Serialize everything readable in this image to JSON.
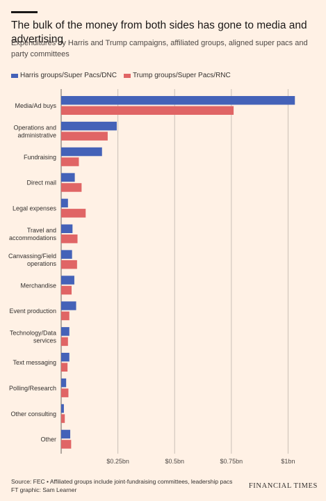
{
  "header": {
    "title": "The bulk of the money from both sides has gone to media and advertising",
    "subtitle": "Expenditures by Harris and Trump campaigns, affiliated groups, aligned super pacs and party committees"
  },
  "colors": {
    "harris": "#4462b8",
    "trump": "#e06565",
    "grid": "#c9bfb6",
    "background": "#fff1e5"
  },
  "chart_data": {
    "type": "bar",
    "orientation": "horizontal",
    "categories": [
      [
        "Media/Ad buys"
      ],
      [
        "Operations and",
        "administrative"
      ],
      [
        "Fundraising"
      ],
      [
        "Direct mail"
      ],
      [
        "Legal expenses"
      ],
      [
        "Travel and",
        "accommodations"
      ],
      [
        "Canvassing/Field",
        "operations"
      ],
      [
        "Merchandise"
      ],
      [
        "Event production"
      ],
      [
        "Technology/Data",
        "services"
      ],
      [
        "Text messaging"
      ],
      [
        "Polling/Research"
      ],
      [
        "Other consulting"
      ],
      [
        "Other"
      ]
    ],
    "series": [
      {
        "name": "Harris groups/Super Pacs/DNC",
        "color": "#4462b8",
        "values": [
          1.03,
          0.245,
          0.18,
          0.06,
          0.03,
          0.05,
          0.048,
          0.058,
          0.066,
          0.036,
          0.036,
          0.022,
          0.012,
          0.04
        ]
      },
      {
        "name": "Trump groups/Super Pacs/RNC",
        "color": "#e06565",
        "values": [
          0.76,
          0.205,
          0.078,
          0.09,
          0.108,
          0.072,
          0.07,
          0.046,
          0.036,
          0.03,
          0.028,
          0.032,
          0.016,
          0.044
        ]
      }
    ],
    "xticks": [
      0.25,
      0.5,
      0.75,
      1.0
    ],
    "xtick_labels": [
      "$0.25bn",
      "$0.5bn",
      "$0.75bn",
      "$1bn"
    ],
    "xlim": [
      0,
      1.04
    ],
    "xlabel": "",
    "ylabel": "",
    "grid": "vertical",
    "legend": "top-left"
  },
  "footer": {
    "source": "Source: FEC • Affiliated groups include joint-fundraising committees, leadership pacs",
    "credit": "FT graphic: Sam Learner",
    "brand": "FINANCIAL TIMES"
  }
}
